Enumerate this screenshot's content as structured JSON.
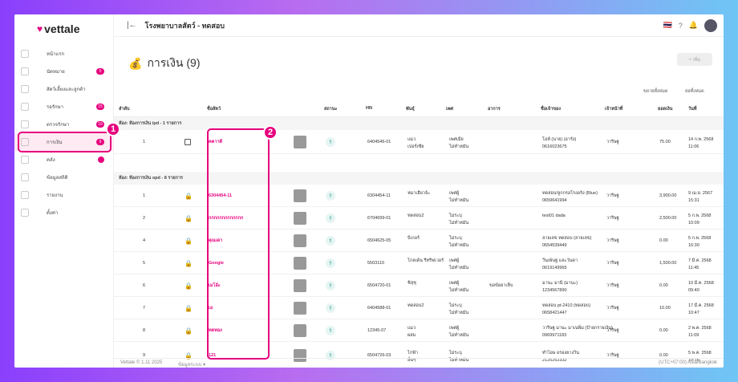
{
  "app": {
    "logo": "vettale",
    "clinic": "โรงพยาบาลสัตว์ - ทดสอบ",
    "lang": "🇹🇭"
  },
  "sidebar": {
    "items": [
      {
        "label": "หน้าแรก",
        "count": ""
      },
      {
        "label": "นัดหมาย",
        "count": "0"
      },
      {
        "label": "สัตว์เลี้ยงและลูกค้า",
        "count": ""
      },
      {
        "label": "รอรักษา",
        "count": "15"
      },
      {
        "label": "ตรวจรักษา",
        "count": "10"
      },
      {
        "label": "การเงิน",
        "count": "9"
      },
      {
        "label": "คลัง",
        "count": "•"
      },
      {
        "label": "ข้อมูลสถิติ",
        "count": ""
      },
      {
        "label": "รายงาน",
        "count": ""
      },
      {
        "label": "ตั้งค่า",
        "count": ""
      }
    ]
  },
  "page": {
    "title": "การเงิน (9)",
    "add_label": "+ เพิ่ม",
    "expand_all": "ขยายทั้งหมด",
    "collapse_all": "ย่อทั้งหมด"
  },
  "table": {
    "headers": [
      "ลำดับ",
      "ชื่อสัตว์",
      "สถานะ",
      "HN",
      "พันธุ์",
      "เพศ",
      "อาการ",
      "ชื่อเจ้าของ",
      "เจ้าหน้าที่",
      "ยอดเงิน",
      "วันที่"
    ],
    "group_ipd": "ห้อง: ห้องการเงิน ipd - 1 รายการ",
    "group_opd": "ห้อง: ห้องการเงิน opd - 8 รายการ",
    "ipd_rows": [
      {
        "no": "1",
        "name": "คคาาดี",
        "hn": "6404546-01",
        "breed": "แมว\nเปอร์เซีย",
        "sex": "เพศเมีย\nไม่ทำหมัน",
        "symptom": "",
        "owner": "โอห์ (นาย) (อารัง)\n0616023675",
        "staff": "วาริษฐ",
        "amount": "75.00",
        "date": "14 ก.พ. 2568\n11:06"
      }
    ],
    "opd_rows": [
      {
        "no": "1",
        "name": "6304454-11",
        "hn": "6304454-11",
        "breed": "หมาเฮียวจ้ะ",
        "sex": "เพศผู้\nไม่ทำหมัน",
        "symptom": "",
        "owner": "ทดสอบ/ลูกกรอโรงอร้ง (Blue)\n0659641994",
        "staff": "วาริษฐ",
        "amount": "3,900.00",
        "date": "9 เม.ย. 2567\n15:31"
      },
      {
        "no": "2",
        "name": "กกกกกกกกกกกกก",
        "hn": "6704699-01",
        "breed": "ทดสอบ2",
        "sex": "ไม่ระบุ\nไม่ทำหมัน",
        "symptom": "",
        "owner": "test01 dada",
        "staff": "วาริษฐ",
        "amount": "2,500.00",
        "date": "5 ก.พ. 2568\n10:09"
      },
      {
        "no": "4",
        "name": "คุณเดา",
        "hn": "6504625-05",
        "breed": "บีเกอร์",
        "sex": "ไม่ระบุ\nไม่ทำหมัน",
        "symptom": "",
        "owner": "ลายเลข ทดสอบ (ลายเลข)\n0654539449",
        "staff": "วาริษฐ",
        "amount": "0.00",
        "date": "5 ก.พ. 2568\n16:30"
      },
      {
        "no": "5",
        "name": "Google",
        "hn": "5503110",
        "breed": "โกลเด้น รีทรีฟเวอร์",
        "sex": "เพศผู้\nไม่ทำหมัน",
        "symptom": "",
        "owner": "วีนเพ้นฐ และวันดา\n0619149965",
        "staff": "วาริษฐ",
        "amount": "1,500.00",
        "date": "7 มี.ค. 2568\n11:45"
      },
      {
        "no": "6",
        "name": "เมโอ้ะ",
        "hn": "6504720-01",
        "breed": "ชิสุชุ",
        "sex": "เพศผู้\nไม่ทำหมัน",
        "symptom": "ขอข้อยาเห็บ",
        "owner": "มานะ มานี (มานะ)\n1234567890",
        "staff": "วาริษฐ",
        "amount": "0.00",
        "date": "10 มี.ค. 2568\n09:40"
      },
      {
        "no": "7",
        "name": "เอ",
        "hn": "6404588-01",
        "breed": "ทดสอบ2",
        "sex": "ไม่ระบุ\nไม่ทำหมัน",
        "symptom": "",
        "owner": "ทดสอบ pt-2410 (ทดสอบ)\n0658421447",
        "staff": "วาริษฐ",
        "amount": "10.00",
        "date": "17 มี.ค. 2568\n10:47"
      },
      {
        "no": "8",
        "name": "ทดทอง",
        "hn": "12345-07",
        "breed": "แมว\nผสม",
        "sex": "เพศผู้\nไม่ทำหมัน",
        "symptom": "",
        "owner": "วาริษฐ มานะ มาเนพิ่ม (ป้ายกรายเงิน)\n0969971183",
        "staff": "วาริษฐ",
        "amount": "0.00",
        "date": "2 พ.ค. 2568\n11:09"
      },
      {
        "no": "9",
        "name": "121",
        "hn": "6504726-03",
        "breed": "ไก่ฟ้า\nอื่นๆ",
        "sex": "ไม่ระบุ\nไม่ทำหมัน",
        "symptom": "",
        "owner": "ทำไอษ อรองยางวิน\n2125252332",
        "staff": "วาริษฐ",
        "amount": "0.00",
        "date": "5 พ.ค. 2568\n10:16"
      }
    ]
  },
  "footer": {
    "version": "Vettale © 1.11 2025",
    "info": "ข้อมูลระบบ ▾",
    "tz": "(UTC+07:00) Asia/Bangkok"
  },
  "callouts": {
    "one": "1",
    "two": "2"
  }
}
